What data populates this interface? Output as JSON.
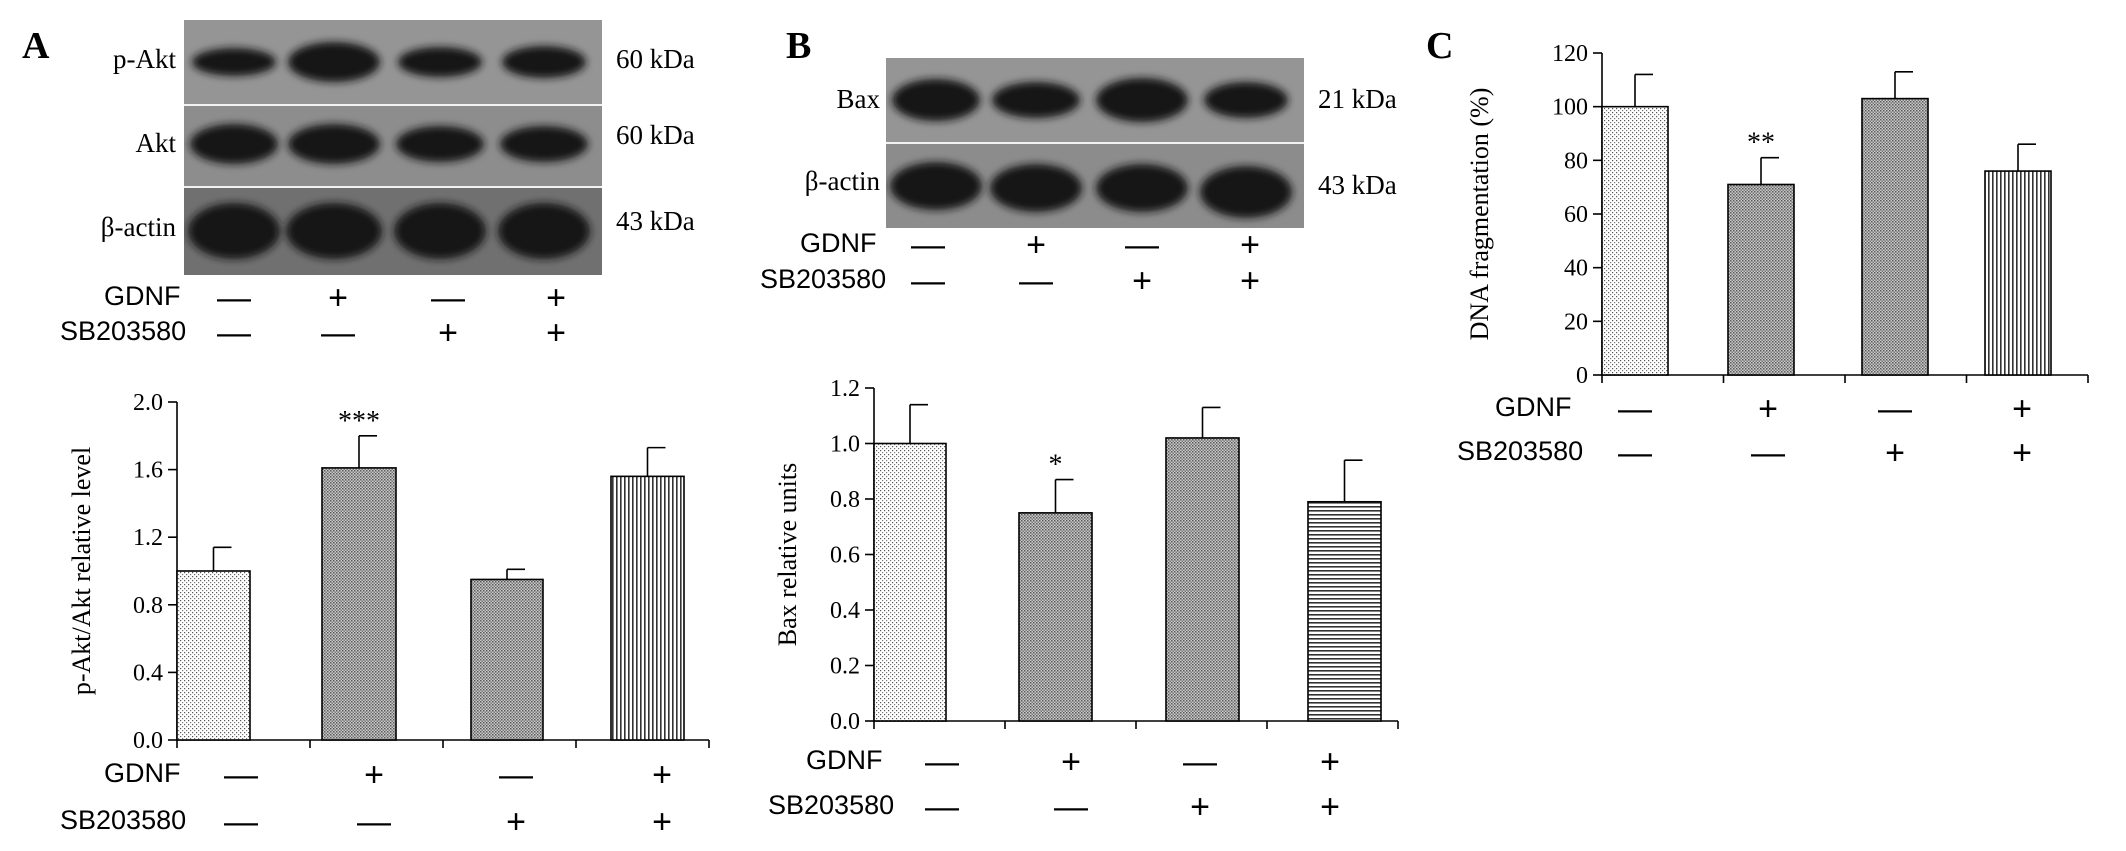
{
  "panels": {
    "A": {
      "letter": "A",
      "blot_rows": [
        {
          "label": "p-Akt",
          "kda": "60 kDa"
        },
        {
          "label": "Akt",
          "kda": "60 kDa"
        },
        {
          "label": "β-actin",
          "kda": "43 kDa"
        }
      ],
      "blot_treatments": {
        "gdnf_label": "GDNF",
        "sb_label": "SB203580",
        "gdnf": [
          "—",
          "+",
          "—",
          "+"
        ],
        "sb": [
          "—",
          "—",
          "+",
          "+"
        ]
      },
      "chart_treatments": {
        "gdnf_label": "GDNF",
        "sb_label": "SB203580",
        "gdnf": [
          "—",
          "+",
          "—",
          "+"
        ],
        "sb": [
          "—",
          "—",
          "+",
          "+"
        ]
      }
    },
    "B": {
      "letter": "B",
      "blot_rows": [
        {
          "label": "Bax",
          "kda": "21 kDa"
        },
        {
          "label": "β-actin",
          "kda": "43 kDa"
        }
      ],
      "blot_treatments": {
        "gdnf_label": "GDNF",
        "sb_label": "SB203580",
        "gdnf": [
          "—",
          "+",
          "—",
          "+"
        ],
        "sb": [
          "—",
          "—",
          "+",
          "+"
        ]
      },
      "chart_treatments": {
        "gdnf_label": "GDNF",
        "sb_label": "SB203580",
        "gdnf": [
          "—",
          "+",
          "—",
          "+"
        ],
        "sb": [
          "—",
          "—",
          "+",
          "+"
        ]
      }
    },
    "C": {
      "letter": "C",
      "chart_treatments": {
        "gdnf_label": "GDNF",
        "sb_label": "SB203580",
        "gdnf": [
          "—",
          "+",
          "—",
          "+"
        ],
        "sb": [
          "—",
          "—",
          "+",
          "+"
        ]
      }
    }
  },
  "chart_data": [
    {
      "id": "A",
      "type": "bar",
      "ylabel": "p-Akt/Akt relative level",
      "ylim": [
        0,
        2.0
      ],
      "yticks": [
        0.0,
        0.4,
        0.8,
        1.2,
        1.6,
        2.0
      ],
      "ytick_labels": [
        "0.0",
        "0.4",
        "0.8",
        "1.2",
        "1.6",
        "2.0"
      ],
      "values": [
        1.0,
        1.61,
        0.95,
        1.56
      ],
      "errors": [
        0.14,
        0.19,
        0.06,
        0.17
      ],
      "significance": [
        "",
        "***",
        "",
        ""
      ],
      "patterns": [
        "dots",
        "dense",
        "dense",
        "vertical"
      ],
      "grid": false
    },
    {
      "id": "B",
      "type": "bar",
      "ylabel": "Bax relative units",
      "ylim": [
        0,
        1.2
      ],
      "yticks": [
        0.0,
        0.2,
        0.4,
        0.6,
        0.8,
        1.0,
        1.2
      ],
      "ytick_labels": [
        "0.0",
        "0.2",
        "0.4",
        "0.6",
        "0.8",
        "1.0",
        "1.2"
      ],
      "values": [
        1.0,
        0.75,
        1.02,
        0.79
      ],
      "errors": [
        0.14,
        0.12,
        0.11,
        0.15
      ],
      "significance": [
        "",
        "*",
        "",
        ""
      ],
      "patterns": [
        "dots",
        "dense",
        "dense",
        "horizontal"
      ],
      "grid": false
    },
    {
      "id": "C",
      "type": "bar",
      "ylabel": "DNA fragmentation (%)",
      "ylim": [
        0,
        120
      ],
      "yticks": [
        0,
        20,
        40,
        60,
        80,
        100,
        120
      ],
      "ytick_labels": [
        "0",
        "20",
        "40",
        "60",
        "80",
        "100",
        "120"
      ],
      "values": [
        100,
        71,
        103,
        76
      ],
      "errors": [
        12,
        10,
        10,
        10
      ],
      "significance": [
        "",
        "**",
        "",
        ""
      ],
      "patterns": [
        "dots",
        "dense",
        "dense",
        "vertical"
      ],
      "grid": false
    }
  ]
}
